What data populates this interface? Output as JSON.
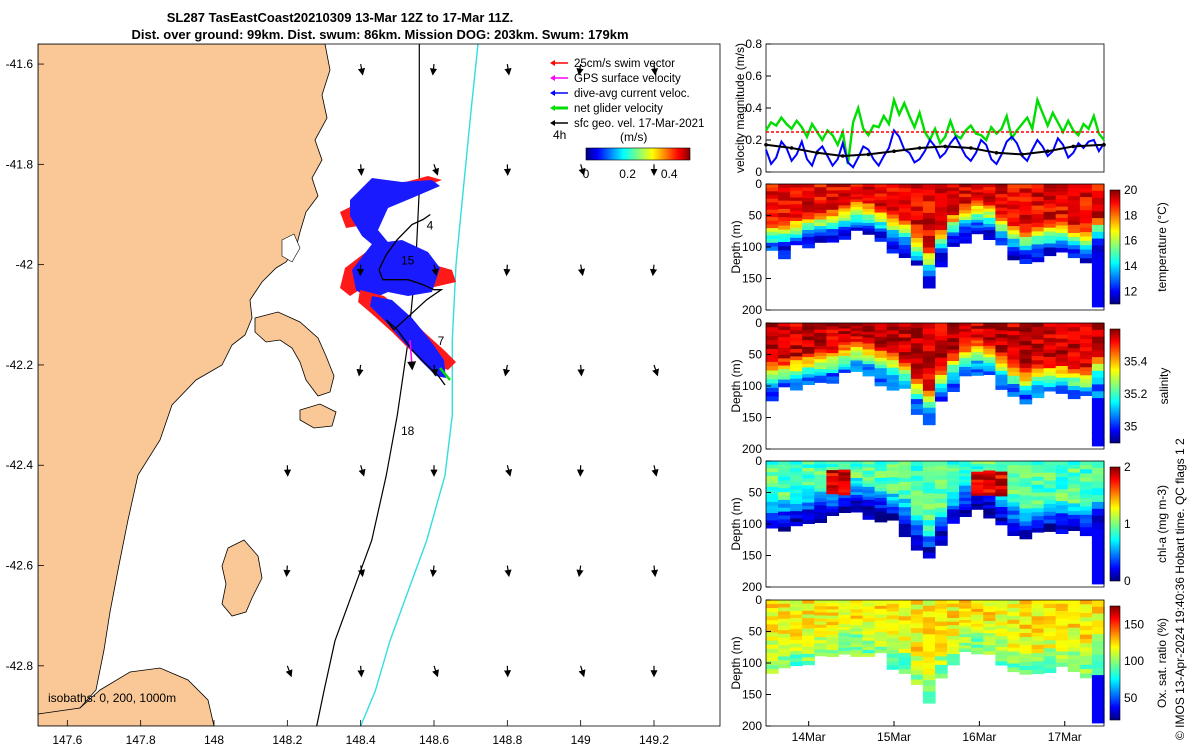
{
  "figure": {
    "title_line1": "SL287 TasEastCoast20210309 13-Mar 12Z to 17-Mar 11Z.",
    "title_line2": "Dist. over ground: 99km. Dist. swum: 86km. Mission DOG: 203km. Swum: 179km",
    "credit": "© IMOS 13-Apr-2024 19:40:36 Hobart time. QC flags 1 2"
  },
  "chart_data": [
    {
      "type": "map",
      "name": "glider track map",
      "xlim": [
        147.52,
        149.38
      ],
      "ylim": [
        -42.92,
        -41.56
      ],
      "xticks": [
        147.6,
        147.8,
        148,
        148.2,
        148.4,
        148.6,
        148.8,
        149,
        149.2
      ],
      "xtick_labels": [
        "147.6",
        "147.8",
        "148",
        "148.2",
        "148.4",
        "148.6",
        "148.8",
        "149",
        "149.2"
      ],
      "yticks": [
        -41.6,
        -41.8,
        -42,
        -42.2,
        -42.4,
        -42.6,
        -42.8
      ],
      "ytick_labels": [
        "-41.6",
        "-41.8",
        "-42",
        "-42.2",
        "-42.4",
        "-42.6",
        "-42.8"
      ],
      "legend": [
        {
          "label": "25cm/s swim vector",
          "color": "#ff0000"
        },
        {
          "label": "GPS surface velocity",
          "color": "#ff00ff"
        },
        {
          "label": "dive-avg current veloc.",
          "color": "#0000ff"
        },
        {
          "label": "net glider velocity",
          "color": "#00dd00"
        },
        {
          "label": "sfc geo. vel. 17-Mar-2021",
          "color": "#000000"
        }
      ],
      "legend_note": "4h",
      "colorbar": {
        "label": "(m/s)",
        "ticks": [
          0,
          0.2,
          0.4
        ],
        "tick_labels": [
          "0",
          "0.2",
          "0.4"
        ],
        "range": [
          0,
          0.5
        ]
      },
      "day_labels": [
        {
          "text": "4",
          "lon": 148.58,
          "lat": -41.93
        },
        {
          "text": "15",
          "lon": 148.51,
          "lat": -42.0
        },
        {
          "text": "7",
          "lon": 148.61,
          "lat": -42.16
        },
        {
          "text": "18",
          "lon": 148.51,
          "lat": -42.34
        }
      ],
      "isobath_label": "isobaths: 0, 200, 1000m",
      "isobath_200m_lon": [
        148.56,
        148.56,
        148.56,
        148.55,
        148.53,
        148.5,
        148.47,
        148.43,
        148.38,
        148.33,
        148.3,
        148.28
      ],
      "isobath_1000m_lon": [
        148.72,
        148.7,
        148.68,
        148.66,
        148.65,
        148.65,
        148.63,
        148.58,
        148.53,
        148.48,
        148.44,
        148.4
      ],
      "isobath_lat": [
        -41.56,
        -41.7,
        -41.85,
        -42.0,
        -42.15,
        -42.3,
        -42.42,
        -42.55,
        -42.65,
        -42.75,
        -42.85,
        -42.92
      ],
      "track": {
        "lon": [
          148.59,
          148.57,
          148.54,
          148.5,
          148.47,
          148.45,
          148.46,
          148.49,
          148.53,
          148.57,
          148.6,
          148.62,
          148.58,
          148.55,
          148.52,
          148.49,
          148.47,
          148.5,
          148.54,
          148.58,
          148.61,
          148.63
        ],
        "lat": [
          -41.9,
          -41.91,
          -41.92,
          -41.95,
          -41.98,
          -42.01,
          -42.03,
          -42.03,
          -42.03,
          -42.04,
          -42.05,
          -42.05,
          -42.07,
          -42.09,
          -42.11,
          -42.13,
          -42.11,
          -42.13,
          -42.17,
          -42.2,
          -42.22,
          -42.24
        ]
      },
      "arrow_grid": {
        "lons": [
          148.2,
          148.4,
          148.6,
          148.8,
          149.0,
          149.2
        ],
        "lats": [
          -41.6,
          -41.8,
          -42.0,
          -42.2,
          -42.4,
          -42.6,
          -42.8
        ]
      }
    },
    {
      "type": "line",
      "name": "velocity magnitude",
      "ylabel": "velocity magnitude (m/s)",
      "ylim": [
        0,
        0.8
      ],
      "yticks": [
        0,
        0.2,
        0.4,
        0.6,
        0.8
      ],
      "ytick_labels": [
        "0",
        "0.2",
        "0.4",
        "0.6",
        "0.8"
      ],
      "xlim_days": [
        13.5,
        17.46
      ],
      "series": [
        {
          "name": "net glider velocity",
          "color": "#00dd00",
          "x": [
            13.5,
            13.56,
            13.62,
            13.68,
            13.74,
            13.8,
            13.86,
            13.92,
            13.98,
            14.04,
            14.1,
            14.16,
            14.22,
            14.28,
            14.34,
            14.4,
            14.46,
            14.52,
            14.58,
            14.64,
            14.7,
            14.76,
            14.82,
            14.88,
            14.94,
            15.0,
            15.06,
            15.12,
            15.18,
            15.24,
            15.3,
            15.36,
            15.42,
            15.48,
            15.54,
            15.6,
            15.66,
            15.72,
            15.78,
            15.84,
            15.9,
            15.96,
            16.02,
            16.08,
            16.14,
            16.2,
            16.26,
            16.32,
            16.38,
            16.44,
            16.5,
            16.56,
            16.62,
            16.68,
            16.74,
            16.8,
            16.86,
            16.92,
            16.98,
            17.04,
            17.1,
            17.16,
            17.22,
            17.28,
            17.34,
            17.4,
            17.46
          ],
          "y": [
            0.26,
            0.31,
            0.29,
            0.34,
            0.3,
            0.27,
            0.32,
            0.28,
            0.22,
            0.3,
            0.25,
            0.2,
            0.26,
            0.23,
            0.17,
            0.25,
            0.05,
            0.31,
            0.4,
            0.27,
            0.23,
            0.29,
            0.28,
            0.35,
            0.3,
            0.45,
            0.36,
            0.43,
            0.35,
            0.28,
            0.37,
            0.25,
            0.2,
            0.27,
            0.18,
            0.22,
            0.32,
            0.23,
            0.21,
            0.26,
            0.29,
            0.24,
            0.23,
            0.2,
            0.28,
            0.24,
            0.27,
            0.35,
            0.21,
            0.26,
            0.3,
            0.34,
            0.27,
            0.45,
            0.37,
            0.29,
            0.37,
            0.31,
            0.25,
            0.32,
            0.26,
            0.23,
            0.3,
            0.27,
            0.35,
            0.24,
            0.2
          ]
        },
        {
          "name": "dive-avg current veloc.",
          "color": "#0000ff",
          "x": [
            13.5,
            13.56,
            13.62,
            13.68,
            13.74,
            13.8,
            13.86,
            13.92,
            13.98,
            14.04,
            14.1,
            14.16,
            14.22,
            14.28,
            14.34,
            14.4,
            14.46,
            14.52,
            14.58,
            14.64,
            14.7,
            14.76,
            14.82,
            14.88,
            14.94,
            15.0,
            15.06,
            15.12,
            15.18,
            15.24,
            15.3,
            15.36,
            15.42,
            15.48,
            15.54,
            15.6,
            15.66,
            15.72,
            15.78,
            15.84,
            15.9,
            15.96,
            16.02,
            16.08,
            16.14,
            16.2,
            16.26,
            16.32,
            16.38,
            16.44,
            16.5,
            16.56,
            16.62,
            16.68,
            16.74,
            16.8,
            16.86,
            16.92,
            16.98,
            17.04,
            17.1,
            17.16,
            17.22,
            17.28,
            17.34,
            17.4,
            17.46
          ],
          "y": [
            0.14,
            0.05,
            0.09,
            0.19,
            0.15,
            0.07,
            0.11,
            0.19,
            0.08,
            0.04,
            0.13,
            0.16,
            0.1,
            0.04,
            0.08,
            0.18,
            0.06,
            0.03,
            0.09,
            0.16,
            0.14,
            0.08,
            0.04,
            0.1,
            0.15,
            0.26,
            0.22,
            0.14,
            0.12,
            0.06,
            0.08,
            0.13,
            0.2,
            0.16,
            0.09,
            0.12,
            0.18,
            0.22,
            0.16,
            0.1,
            0.07,
            0.12,
            0.2,
            0.17,
            0.08,
            0.05,
            0.11,
            0.19,
            0.22,
            0.18,
            0.1,
            0.07,
            0.14,
            0.2,
            0.16,
            0.1,
            0.13,
            0.21,
            0.17,
            0.09,
            0.12,
            0.18,
            0.15,
            0.19,
            0.2,
            0.13,
            0.18
          ]
        },
        {
          "name": "sfc geo. vel.",
          "color": "#000000",
          "x": [
            13.5,
            13.8,
            14.1,
            14.4,
            14.7,
            15.0,
            15.3,
            15.6,
            15.9,
            16.2,
            16.5,
            16.8,
            17.1,
            17.46
          ],
          "y": [
            0.17,
            0.15,
            0.12,
            0.1,
            0.11,
            0.13,
            0.15,
            0.16,
            0.15,
            0.12,
            0.11,
            0.13,
            0.16,
            0.17
          ]
        },
        {
          "name": "25cm/s swim",
          "color": "#ff0000",
          "x": [
            13.5,
            17.46
          ],
          "y": [
            0.25,
            0.25
          ]
        }
      ]
    },
    {
      "type": "heatmap",
      "name": "temperature section",
      "ylabel": "Depth (m)",
      "ylim": [
        200,
        0
      ],
      "yticks": [
        0,
        50,
        100,
        150,
        200
      ],
      "ytick_labels": [
        "0",
        "50",
        "100",
        "150",
        "200"
      ],
      "colorbar_label": "temperature (°C)",
      "clim": [
        11,
        20
      ],
      "colorbar_ticks": [
        12,
        14,
        16,
        18,
        20
      ],
      "colorbar_tick_labels": [
        "12",
        "14",
        "16",
        "18",
        "20"
      ],
      "colormap": "jet",
      "surface_value": 19.0,
      "deep_value": 12.0,
      "thermocline_depth": [
        60,
        55,
        50,
        45,
        40,
        38,
        30,
        25,
        28,
        35,
        45,
        55,
        80,
        100,
        70,
        45,
        30,
        25,
        30,
        45,
        60,
        70,
        65,
        60,
        60,
        65,
        70,
        50
      ]
    },
    {
      "type": "heatmap",
      "name": "salinity section",
      "ylabel": "Depth (m)",
      "ylim": [
        200,
        0
      ],
      "yticks": [
        0,
        50,
        100,
        150,
        200
      ],
      "ytick_labels": [
        "0",
        "50",
        "100",
        "150",
        "200"
      ],
      "colorbar_label": "salinity",
      "clim": [
        34.9,
        35.6
      ],
      "colorbar_ticks": [
        35,
        35.2,
        35.4
      ],
      "colorbar_tick_labels": [
        "35",
        "35.2",
        "35.4"
      ],
      "colormap": "jet",
      "surface_value": 35.55,
      "deep_value": 35.05,
      "thermocline_depth": [
        60,
        55,
        50,
        45,
        40,
        38,
        30,
        25,
        28,
        35,
        45,
        55,
        80,
        100,
        70,
        45,
        30,
        25,
        30,
        45,
        60,
        70,
        65,
        60,
        60,
        65,
        70,
        50
      ]
    },
    {
      "type": "heatmap",
      "name": "chlorophyll section",
      "ylabel": "Depth (m)",
      "ylim": [
        200,
        0
      ],
      "yticks": [
        0,
        50,
        100,
        150,
        200
      ],
      "ytick_labels": [
        "0",
        "50",
        "100",
        "150",
        "200"
      ],
      "colorbar_label": "chl-a (mg m-3)",
      "clim": [
        0,
        2
      ],
      "colorbar_ticks": [
        0,
        1,
        2
      ],
      "colorbar_tick_labels": [
        "0",
        "1",
        "2"
      ],
      "colormap": "jet",
      "surface_value": 0.9,
      "deep_value": 0.1,
      "thermocline_depth": [
        60,
        55,
        50,
        45,
        40,
        38,
        30,
        25,
        28,
        35,
        45,
        55,
        80,
        100,
        70,
        45,
        30,
        25,
        30,
        45,
        60,
        70,
        65,
        60,
        60,
        65,
        70,
        50
      ]
    },
    {
      "type": "heatmap",
      "name": "oxygen saturation section",
      "ylabel": "Depth (m)",
      "ylim": [
        200,
        0
      ],
      "yticks": [
        0,
        50,
        100,
        150,
        200
      ],
      "ytick_labels": [
        "0",
        "50",
        "100",
        "150",
        "200"
      ],
      "colorbar_label": "Ox. sat. ratio (%)",
      "clim": [
        20,
        175
      ],
      "colorbar_ticks": [
        50,
        100,
        150
      ],
      "colorbar_tick_labels": [
        "50",
        "100",
        "150"
      ],
      "colormap": "jet",
      "surface_value": 118,
      "deep_value": 95,
      "thermocline_depth": [
        60,
        55,
        50,
        45,
        40,
        38,
        30,
        25,
        28,
        35,
        45,
        55,
        80,
        100,
        70,
        45,
        30,
        25,
        30,
        45,
        60,
        70,
        65,
        60,
        60,
        65,
        70,
        50
      ],
      "xtick_days": [
        14,
        15,
        16,
        17
      ],
      "xtick_labels": [
        "14Mar",
        "15Mar",
        "16Mar",
        "17Mar"
      ]
    }
  ]
}
